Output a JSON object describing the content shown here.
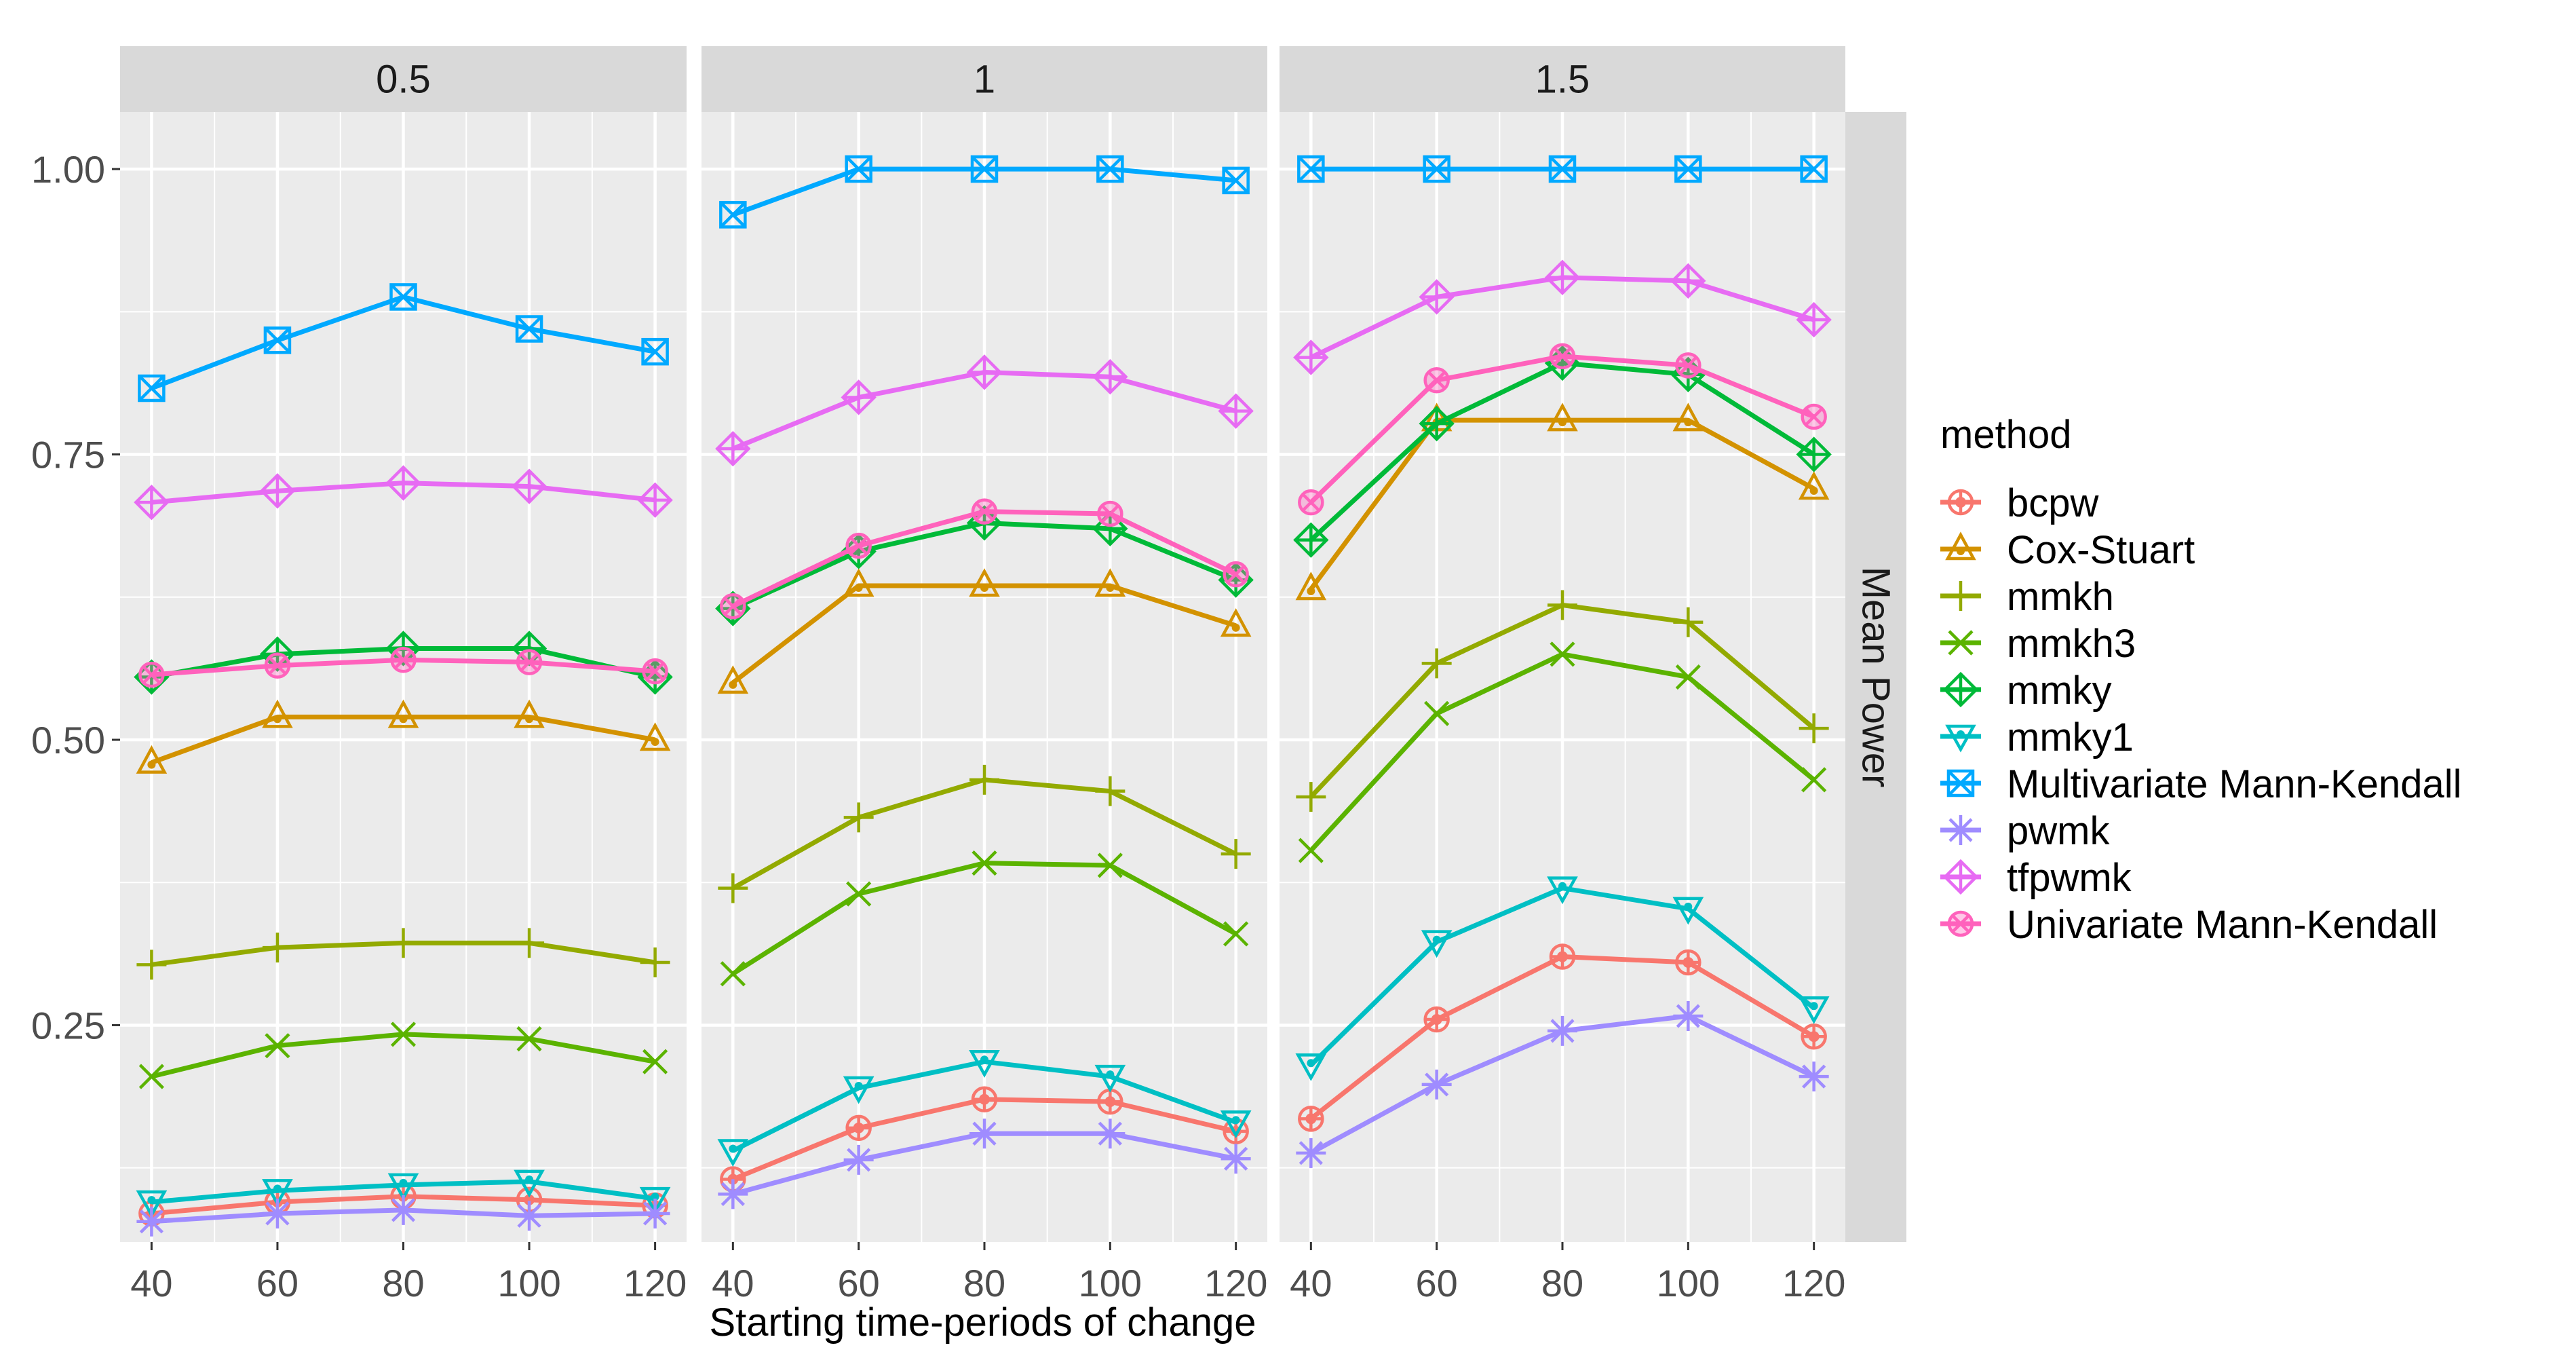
{
  "chart_data": {
    "type": "line",
    "facet_var": "0.5 / 1 / 1.5",
    "facets": [
      "0.5",
      "1",
      "1.5"
    ],
    "xlabel": "Starting time-periods of change",
    "ylabel": "Mean Power",
    "x": [
      40,
      60,
      80,
      100,
      120
    ],
    "x_ticks": [
      "40",
      "60",
      "80",
      "100",
      "120"
    ],
    "y_ticks": [
      "0.25",
      "0.50",
      "0.75",
      "1.00"
    ],
    "ylim": [
      0.06,
      1.05
    ],
    "xlim": [
      35,
      125
    ],
    "legend_title": "method",
    "legend_position": "right",
    "grid": true,
    "series": [
      {
        "name": "bcpw",
        "color": "#F8766D",
        "shape": "circle-plus",
        "values": [
          [
            0.085,
            0.095,
            0.1,
            0.097,
            0.092
          ],
          [
            0.115,
            0.16,
            0.185,
            0.183,
            0.157
          ],
          [
            0.168,
            0.255,
            0.31,
            0.305,
            0.24
          ]
        ]
      },
      {
        "name": "Cox-Stuart",
        "color": "#D39200",
        "shape": "triangle-dot",
        "values": [
          [
            0.48,
            0.52,
            0.52,
            0.52,
            0.5
          ],
          [
            0.55,
            0.635,
            0.635,
            0.635,
            0.6
          ],
          [
            0.632,
            0.78,
            0.78,
            0.78,
            0.72
          ]
        ]
      },
      {
        "name": "mmkh",
        "color": "#93AA00",
        "shape": "plus",
        "values": [
          [
            0.303,
            0.318,
            0.322,
            0.322,
            0.305
          ],
          [
            0.37,
            0.432,
            0.465,
            0.455,
            0.4
          ],
          [
            0.45,
            0.567,
            0.618,
            0.603,
            0.51
          ]
        ]
      },
      {
        "name": "mmkh3",
        "color": "#5BB300",
        "shape": "cross",
        "values": [
          [
            0.205,
            0.232,
            0.242,
            0.238,
            0.218
          ],
          [
            0.295,
            0.365,
            0.392,
            0.39,
            0.33
          ],
          [
            0.403,
            0.523,
            0.575,
            0.555,
            0.465
          ]
        ]
      },
      {
        "name": "mmky",
        "color": "#00BA38",
        "shape": "diamond-plus",
        "values": [
          [
            0.555,
            0.575,
            0.58,
            0.58,
            0.555
          ],
          [
            0.615,
            0.665,
            0.69,
            0.685,
            0.64
          ],
          [
            0.675,
            0.777,
            0.83,
            0.82,
            0.75
          ]
        ]
      },
      {
        "name": "mmky1",
        "color": "#00BFC4",
        "shape": "triangle-down",
        "values": [
          [
            0.095,
            0.105,
            0.11,
            0.113,
            0.098
          ],
          [
            0.14,
            0.195,
            0.218,
            0.205,
            0.165
          ],
          [
            0.215,
            0.323,
            0.37,
            0.352,
            0.265
          ]
        ]
      },
      {
        "name": "Multivariate Mann-Kendall",
        "color": "#00A9FF",
        "shape": "square-cross",
        "values": [
          [
            0.808,
            0.85,
            0.888,
            0.86,
            0.84
          ],
          [
            0.96,
            1.0,
            1.0,
            1.0,
            0.99
          ],
          [
            1.0,
            1.0,
            1.0,
            1.0,
            1.0
          ]
        ]
      },
      {
        "name": "pwmk",
        "color": "#9F8CFF",
        "shape": "asterisk",
        "values": [
          [
            0.078,
            0.085,
            0.088,
            0.083,
            0.085
          ],
          [
            0.102,
            0.132,
            0.155,
            0.155,
            0.133
          ],
          [
            0.138,
            0.198,
            0.245,
            0.258,
            0.205
          ]
        ]
      },
      {
        "name": "tfpwmk",
        "color": "#E76BF3",
        "shape": "diamond-plus",
        "values": [
          [
            0.708,
            0.718,
            0.725,
            0.722,
            0.71
          ],
          [
            0.755,
            0.8,
            0.822,
            0.818,
            0.788
          ],
          [
            0.835,
            0.888,
            0.905,
            0.902,
            0.868
          ]
        ]
      },
      {
        "name": "Univariate Mann-Kendall",
        "color": "#FF62BC",
        "shape": "circle-cross",
        "values": [
          [
            0.557,
            0.565,
            0.57,
            0.568,
            0.56
          ],
          [
            0.617,
            0.67,
            0.7,
            0.698,
            0.645
          ],
          [
            0.708,
            0.815,
            0.836,
            0.828,
            0.783
          ]
        ]
      }
    ]
  }
}
